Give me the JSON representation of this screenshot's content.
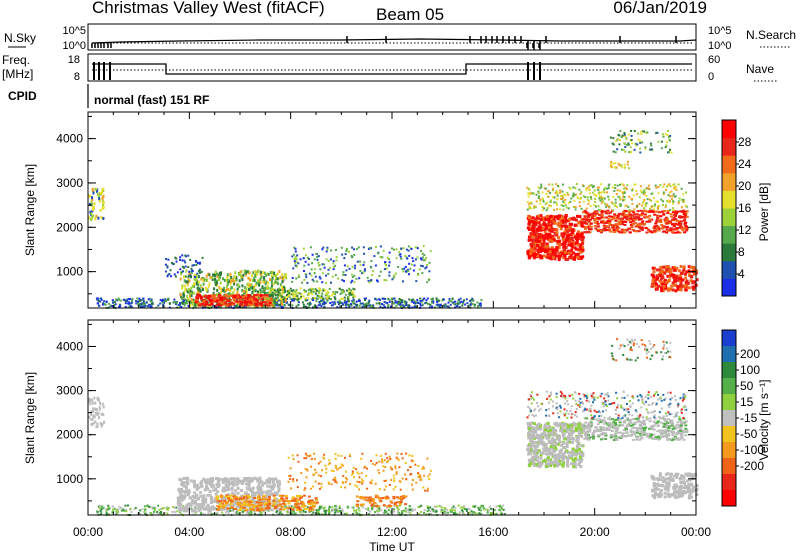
{
  "header": {
    "title": "Christmas Valley West (fitACF)",
    "beam": "Beam 05",
    "date": "06/Jan/2019"
  },
  "aux_panels": {
    "nsky_label": "N.Sky",
    "nsearch_label": "N.Search",
    "noise_ticks": [
      "10^5",
      "10^0"
    ],
    "freq_label_1": "Freq.",
    "freq_label_2": "[MHz]",
    "freq_ticks": [
      "18",
      "8"
    ],
    "nave_ticks": [
      "60",
      "0"
    ],
    "nave_label": "Nave",
    "cpid_label": "CPID",
    "cpid_text": "normal (fast) 151 RF"
  },
  "colors": {
    "power_scale": [
      "#1a2ee8",
      "#1f4fb0",
      "#2b7a3a",
      "#55a84b",
      "#9dd13a",
      "#e6df2f",
      "#f2a12b",
      "#f36a1a",
      "#e8261a",
      "#ff0000"
    ],
    "velocity_scale": [
      "#1a3fd0",
      "#1f6fb0",
      "#2e8a3a",
      "#55b04a",
      "#8fd03e",
      "#c0c0c0",
      "#f2c21e",
      "#f39a1e",
      "#f0641a",
      "#e8261a",
      "#ff0000"
    ],
    "ground_scatter": "#bcbcbc"
  },
  "chart_data": [
    {
      "type": "heatmap",
      "name": "power",
      "ylabel": "Slant Range [km]",
      "xlabel": "Time UT",
      "x_ticks": [
        "00:00",
        "04:00",
        "08:00",
        "12:00",
        "16:00",
        "20:00",
        "00:00"
      ],
      "y_ticks": [
        1000,
        2000,
        3000,
        4000
      ],
      "xlim_hours": [
        0,
        24
      ],
      "ylim_km": [
        180,
        4600
      ],
      "colorbar_label": "Power [dB]",
      "colorbar_ticks": [
        4,
        8,
        12,
        16,
        20,
        24,
        28
      ],
      "colorbar_range": [
        0,
        32
      ]
    },
    {
      "type": "heatmap",
      "name": "velocity",
      "ylabel": "Slant Range [km]",
      "xlabel": "Time UT",
      "x_ticks": [
        "00:00",
        "04:00",
        "08:00",
        "12:00",
        "16:00",
        "20:00",
        "00:00"
      ],
      "y_ticks": [
        1000,
        2000,
        3000,
        4000
      ],
      "xlim_hours": [
        0,
        24
      ],
      "ylim_km": [
        180,
        4600
      ],
      "colorbar_label": "Velocity [m s⁻¹]",
      "colorbar_ticks": [
        "200",
        "100",
        "50",
        "15",
        "-15",
        "-50",
        "-100",
        "-200"
      ]
    }
  ]
}
